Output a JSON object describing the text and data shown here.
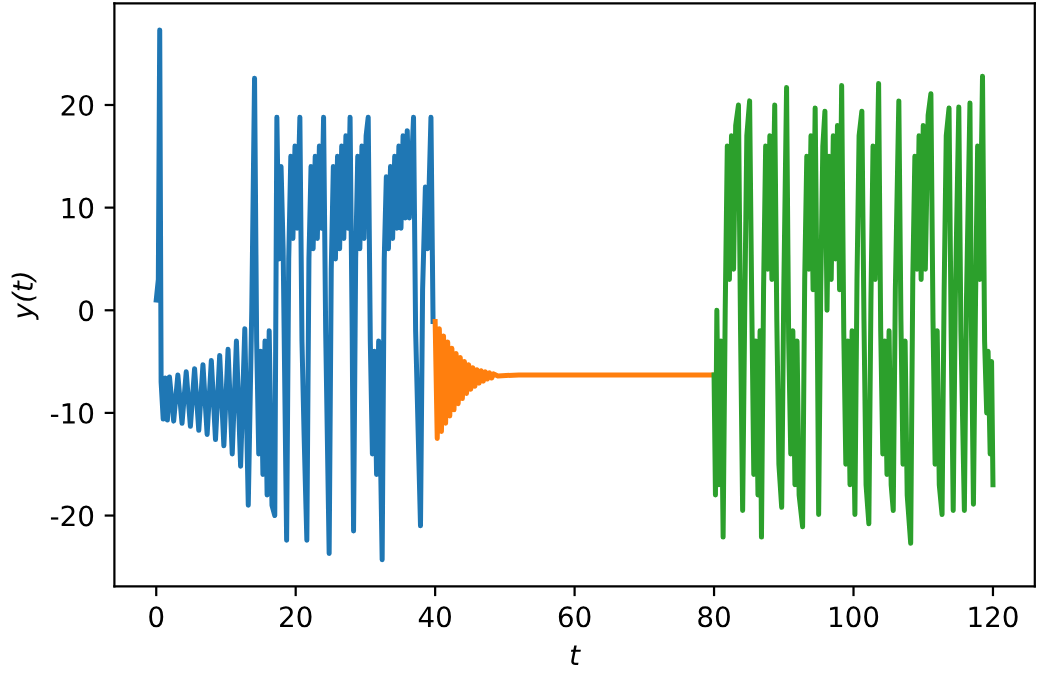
{
  "chart_data": {
    "type": "line",
    "xlabel": "t",
    "ylabel": "y(t)",
    "xlim": [
      -6,
      126
    ],
    "ylim": [
      -26.9,
      29.9
    ],
    "xticks": [
      0,
      20,
      40,
      60,
      80,
      100,
      120
    ],
    "yticks": [
      -20,
      -10,
      0,
      10,
      20
    ],
    "grid": false,
    "line_style": "solid",
    "marker": "none",
    "series": [
      {
        "color": "#1f77b4",
        "x": [
          0,
          0.3,
          0.5,
          0.7,
          1.0,
          1.3,
          1.6,
          1.9,
          2.5,
          3.1,
          3.7,
          4.3,
          4.9,
          5.5,
          6.1,
          6.7,
          7.3,
          7.9,
          8.5,
          9.1,
          9.7,
          10.3,
          10.9,
          11.5,
          12.1,
          12.7,
          13.2,
          13.7,
          14.1,
          14.4,
          14.7,
          15.0,
          15.3,
          15.6,
          15.9,
          16.2,
          16.6,
          17.0,
          17.3,
          17.6,
          17.9,
          18.2,
          18.7,
          19.0,
          19.3,
          19.6,
          19.9,
          20.2,
          20.6,
          20.9,
          21.2,
          21.6,
          21.9,
          22.2,
          22.5,
          22.8,
          23.1,
          23.4,
          23.7,
          24.0,
          24.3,
          24.8,
          25.1,
          25.4,
          25.7,
          26.0,
          26.3,
          26.6,
          26.9,
          27.2,
          27.5,
          27.8,
          28.1,
          28.3,
          28.6,
          28.9,
          29.2,
          29.5,
          29.8,
          30.1,
          30.4,
          30.7,
          31.0,
          31.3,
          31.6,
          31.9,
          32.4,
          32.7,
          33.0,
          33.3,
          33.6,
          33.9,
          34.2,
          34.5,
          34.8,
          35.1,
          35.4,
          35.7,
          36.0,
          36.3,
          36.9,
          37.2,
          37.9,
          38.2,
          38.6,
          38.9,
          39.4,
          39.7
        ],
        "values": [
          1,
          3,
          27.3,
          -7,
          -10.6,
          -6.6,
          -10.7,
          -6.5,
          -10.8,
          -6.3,
          -11.0,
          -6.0,
          -11.3,
          -5.7,
          -11.7,
          -5.3,
          -12.1,
          -4.9,
          -12.6,
          -4.4,
          -13.2,
          -3.8,
          -14.0,
          -3.0,
          -15.2,
          -1.8,
          -19,
          0,
          22.6,
          -3,
          -14,
          -4,
          -16,
          -3,
          -18,
          -2,
          -19,
          -20,
          18.8,
          5,
          14,
          6,
          -22.4,
          5,
          15,
          7,
          16,
          8,
          18.8,
          -3,
          -12,
          -22.4,
          5,
          14,
          6,
          15,
          7,
          16,
          8,
          18.8,
          -2,
          -23.7,
          4,
          14,
          5,
          15,
          6,
          16,
          7,
          17,
          8,
          18.8,
          -2,
          -21.5,
          5,
          15,
          6,
          16,
          7,
          17,
          18.8,
          -3,
          -14,
          -4,
          -16,
          -3,
          -24.3,
          5,
          13,
          6,
          14,
          7,
          15,
          8,
          16,
          8,
          17,
          9,
          17.5,
          9,
          18.8,
          -2,
          -21,
          2,
          12,
          6,
          18.8,
          -1.1
        ]
      },
      {
        "color": "#ff7f0e",
        "x": [
          40.0,
          40.3,
          40.6,
          40.9,
          41.2,
          41.5,
          41.8,
          42.1,
          42.4,
          42.7,
          43.0,
          43.3,
          43.6,
          43.9,
          44.2,
          44.5,
          44.8,
          45.1,
          45.4,
          45.7,
          46.0,
          46.3,
          46.6,
          46.9,
          47.2,
          47.5,
          47.8,
          48.1,
          48.4,
          49,
          52,
          80
        ],
        "values": [
          -1.1,
          -12.5,
          -1.8,
          -11.8,
          -2.5,
          -11.0,
          -3.1,
          -10.3,
          -3.7,
          -9.7,
          -4.2,
          -9.1,
          -4.6,
          -8.6,
          -5.0,
          -8.1,
          -5.3,
          -7.7,
          -5.6,
          -7.4,
          -5.8,
          -7.1,
          -5.9,
          -6.9,
          -6.0,
          -6.7,
          -6.1,
          -6.6,
          -6.2,
          -6.4,
          -6.3,
          -6.3
        ]
      },
      {
        "color": "#2ca02c",
        "x": [
          80,
          80.2,
          80.4,
          80.7,
          81.0,
          81.3,
          81.6,
          81.9,
          82.2,
          82.5,
          82.8,
          83.1,
          83.5,
          83.8,
          84.1,
          84.4,
          84.7,
          85.1,
          85.4,
          85.7,
          86.0,
          86.3,
          86.6,
          86.8,
          87.1,
          87.4,
          87.7,
          88.0,
          88.3,
          88.7,
          89.0,
          89.3,
          89.7,
          90.0,
          90.4,
          90.7,
          91.0,
          91.3,
          91.6,
          91.9,
          92.2,
          92.7,
          93.0,
          93.3,
          93.6,
          93.9,
          94.2,
          94.5,
          94.8,
          95.0,
          95.3,
          95.6,
          95.9,
          96.2,
          96.5,
          96.8,
          97.1,
          97.4,
          97.7,
          98.0,
          98.3,
          98.6,
          98.9,
          99.2,
          99.5,
          99.8,
          100.2,
          100.5,
          100.8,
          101.2,
          101.5,
          101.8,
          102.2,
          102.5,
          102.8,
          103.1,
          103.6,
          103.9,
          104.2,
          104.5,
          104.8,
          105.1,
          105.4,
          105.7,
          106.0,
          106.5,
          106.8,
          107.1,
          107.4,
          107.7,
          108.2,
          108.5,
          108.8,
          109.1,
          109.4,
          109.7,
          110.0,
          110.3,
          110.7,
          111.1,
          111.4,
          111.7,
          112.0,
          112.3,
          112.7,
          113.0,
          113.3,
          113.7,
          114.0,
          114.3,
          114.6,
          115.1,
          115.4,
          115.9,
          116.2,
          116.7,
          116.9,
          117.2,
          117.5,
          117.8,
          118.1,
          118.5,
          118.8,
          119.1,
          119.3,
          119.6,
          119.8,
          120.0
        ],
        "values": [
          -6.3,
          -18,
          0,
          -17,
          -3,
          -22.1,
          0,
          16,
          3,
          17,
          4,
          18,
          20.0,
          -2,
          -19.5,
          0,
          17,
          20.4,
          1,
          -16,
          -3,
          -18,
          -2,
          -22.1,
          2,
          16,
          4,
          17,
          3,
          20.0,
          -1,
          -15,
          -19.2,
          2,
          21.7,
          -3,
          -14,
          -2,
          -17,
          -3,
          -18,
          -21.1,
          3,
          15,
          4,
          17,
          2,
          19.7,
          -1,
          -19.9,
          2,
          16,
          19.4,
          0,
          15,
          3,
          17,
          5,
          18,
          2,
          21.9,
          -2,
          -15,
          -3,
          -17,
          -2,
          -19.9,
          3,
          17,
          19.4,
          -1,
          -17,
          -20.8,
          1,
          16,
          3,
          22.1,
          -2,
          -14,
          -3,
          -16,
          -2,
          -17,
          -19.5,
          2,
          20.4,
          -1,
          -15,
          -3,
          -18,
          -22.7,
          3,
          15,
          4,
          17,
          3,
          18,
          4,
          19,
          21.1,
          -1,
          -15,
          -2,
          -17,
          -19.9,
          2,
          17,
          19.7,
          -2,
          -19.5,
          1,
          19.8,
          -2,
          -19.5,
          1,
          20.2,
          -1,
          -18.9,
          1,
          16,
          3,
          22.8,
          -3,
          -10,
          -4,
          -14,
          -5,
          -17
        ]
      }
    ]
  }
}
